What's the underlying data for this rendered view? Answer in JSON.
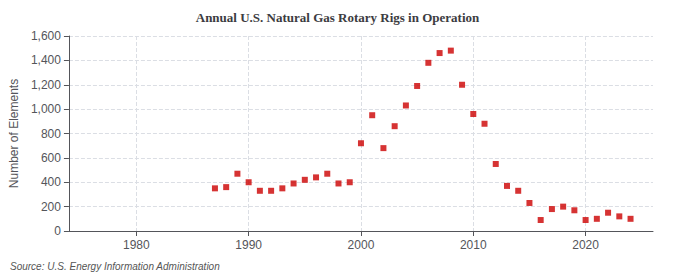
{
  "chart_data": {
    "type": "scatter",
    "title": "Annual U.S. Natural Gas Rotary Rigs in Operation",
    "ylabel": "Number of Elements",
    "source": "Source: U.S. Energy Information Administration",
    "x": [
      1987,
      1988,
      1989,
      1990,
      1991,
      1992,
      1993,
      1994,
      1995,
      1996,
      1997,
      1998,
      1999,
      2000,
      2001,
      2002,
      2003,
      2004,
      2005,
      2006,
      2007,
      2008,
      2009,
      2010,
      2011,
      2012,
      2013,
      2014,
      2015,
      2016,
      2017,
      2018,
      2019,
      2020,
      2021,
      2022,
      2023,
      2024
    ],
    "values": [
      350,
      360,
      470,
      400,
      330,
      330,
      350,
      390,
      420,
      440,
      470,
      390,
      400,
      720,
      950,
      680,
      860,
      1030,
      1190,
      1380,
      1460,
      1480,
      1200,
      960,
      880,
      550,
      370,
      330,
      230,
      90,
      180,
      200,
      170,
      90,
      100,
      150,
      120,
      100
    ],
    "color": "#cc0000",
    "marker": "square",
    "xlim": [
      1974,
      2026
    ],
    "xticks": [
      1980,
      1990,
      2000,
      2010,
      2020
    ],
    "ylim": [
      0,
      1600
    ],
    "yticks": [
      0,
      200,
      400,
      600,
      800,
      {
        "value": 1000,
        "label": "1,000"
      },
      {
        "value": 1200,
        "label": "1,200"
      },
      {
        "value": 1400,
        "label": "1,400"
      },
      {
        "value": 1600,
        "label": "1,600"
      }
    ],
    "grid": true
  }
}
